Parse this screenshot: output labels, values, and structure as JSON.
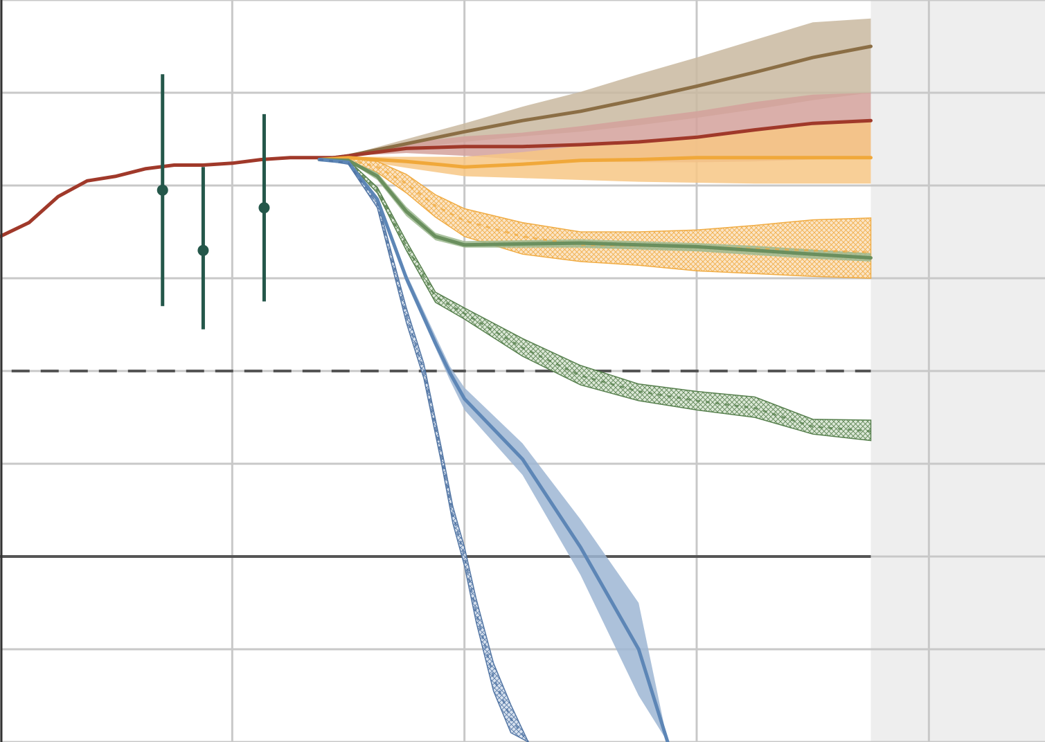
{
  "chart_data": {
    "type": "line",
    "title": "",
    "xlabel": "",
    "ylabel": "",
    "xlim": [
      1950,
      2130
    ],
    "ylim": [
      -2,
      6
    ],
    "x_gridlines": [
      1950,
      1990,
      2030,
      2070,
      2110
    ],
    "y_gridlines": [
      -2,
      -1,
      0,
      1,
      2,
      3,
      4,
      5,
      6
    ],
    "shaded_region": {
      "x_start": 2100,
      "x_end": 2130,
      "color": "#eeeeee"
    },
    "zero_line": {
      "y": 0,
      "color": "#555555"
    },
    "reference_line": {
      "y": 2,
      "style": "dashed",
      "color": "#555555"
    },
    "grid": true,
    "legend": "none",
    "historical": {
      "color": "#a0392a",
      "x": [
        1950,
        1955,
        1960,
        1965,
        1970,
        1975,
        1980,
        1985,
        1990,
        1995,
        2000,
        2005,
        2010
      ],
      "y": [
        3.45,
        3.6,
        3.88,
        4.05,
        4.1,
        4.18,
        4.22,
        4.22,
        4.24,
        4.28,
        4.3,
        4.3,
        4.3
      ]
    },
    "observations": {
      "color": "#24574a",
      "points": [
        {
          "x": 1978,
          "y": 3.95,
          "low": 2.7,
          "high": 5.2
        },
        {
          "x": 1985,
          "y": 3.3,
          "low": 2.45,
          "high": 4.2
        },
        {
          "x": 1995.5,
          "y": 3.76,
          "low": 2.75,
          "high": 4.77
        }
      ]
    },
    "series": [
      {
        "color": "#8b6e45",
        "fill": "#c9b9a0",
        "hatched": false,
        "x": [
          2005,
          2010,
          2020,
          2030,
          2040,
          2050,
          2060,
          2070,
          2080,
          2090,
          2100
        ],
        "y": [
          4.28,
          4.32,
          4.45,
          4.58,
          4.7,
          4.8,
          4.93,
          5.07,
          5.22,
          5.38,
          5.5
        ],
        "low": [
          4.28,
          4.32,
          4.4,
          4.47,
          4.53,
          4.58,
          4.65,
          4.73,
          4.82,
          4.92,
          5.0
        ],
        "high": [
          4.28,
          4.33,
          4.5,
          4.67,
          4.85,
          5.01,
          5.2,
          5.38,
          5.57,
          5.76,
          5.8
        ]
      },
      {
        "color": "#a0392a",
        "fill": "#d4a19b",
        "hatched": false,
        "x": [
          2005,
          2010,
          2020,
          2030,
          2040,
          2050,
          2060,
          2070,
          2080,
          2090,
          2100
        ],
        "y": [
          4.28,
          4.32,
          4.4,
          4.42,
          4.42,
          4.44,
          4.47,
          4.52,
          4.6,
          4.67,
          4.7
        ],
        "low": [
          4.28,
          4.32,
          4.35,
          4.32,
          4.28,
          4.26,
          4.25,
          4.25,
          4.26,
          4.28,
          4.3
        ],
        "high": [
          4.28,
          4.33,
          4.46,
          4.53,
          4.57,
          4.64,
          4.72,
          4.8,
          4.9,
          4.98,
          5.0
        ]
      },
      {
        "color": "#f0a83a",
        "fill": "#f7c785",
        "hatched": false,
        "x": [
          2005,
          2010,
          2020,
          2030,
          2040,
          2050,
          2060,
          2070,
          2080,
          2090,
          2100
        ],
        "y": [
          4.28,
          4.3,
          4.26,
          4.2,
          4.23,
          4.27,
          4.28,
          4.3,
          4.3,
          4.3,
          4.3
        ],
        "low": [
          4.28,
          4.29,
          4.19,
          4.1,
          4.08,
          4.06,
          4.04,
          4.03,
          4.02,
          4.02,
          4.02
        ],
        "high": [
          4.28,
          4.31,
          4.31,
          4.31,
          4.36,
          4.43,
          4.48,
          4.54,
          4.6,
          4.65,
          4.7
        ]
      },
      {
        "color": "#f0a83a",
        "fill": "#f0a83a",
        "hatched": true,
        "x": [
          2005,
          2010,
          2015,
          2020,
          2025,
          2030,
          2040,
          2050,
          2060,
          2070,
          2080,
          2090,
          2100
        ],
        "y": [
          4.28,
          4.28,
          4.2,
          4.02,
          3.78,
          3.62,
          3.45,
          3.36,
          3.35,
          3.34,
          3.32,
          3.3,
          3.28
        ],
        "low": [
          4.28,
          4.27,
          4.14,
          3.92,
          3.66,
          3.45,
          3.26,
          3.18,
          3.14,
          3.08,
          3.05,
          3.02,
          3.0
        ],
        "high": [
          4.28,
          4.29,
          4.26,
          4.12,
          3.9,
          3.75,
          3.6,
          3.5,
          3.5,
          3.52,
          3.57,
          3.63,
          3.65
        ]
      },
      {
        "color": "#6a8f5e",
        "fill": "#9cb88f",
        "hatched": false,
        "x": [
          2005,
          2010,
          2015,
          2020,
          2025,
          2030,
          2040,
          2050,
          2060,
          2070,
          2080,
          2090,
          2100
        ],
        "y": [
          4.28,
          4.27,
          4.1,
          3.72,
          3.45,
          3.36,
          3.37,
          3.38,
          3.36,
          3.34,
          3.3,
          3.26,
          3.22
        ],
        "low": [
          4.28,
          4.26,
          4.06,
          3.67,
          3.41,
          3.33,
          3.33,
          3.33,
          3.31,
          3.29,
          3.25,
          3.21,
          3.18
        ],
        "high": [
          4.28,
          4.28,
          4.14,
          3.77,
          3.49,
          3.4,
          3.41,
          3.42,
          3.4,
          3.38,
          3.35,
          3.31,
          3.27
        ]
      },
      {
        "color": "#4f7a45",
        "fill": "#4f7a45",
        "hatched": true,
        "x": [
          2005,
          2010,
          2015,
          2020,
          2025,
          2030,
          2040,
          2050,
          2060,
          2070,
          2080,
          2090,
          2100
        ],
        "y": [
          4.28,
          4.26,
          3.95,
          3.35,
          2.8,
          2.62,
          2.25,
          1.95,
          1.78,
          1.68,
          1.6,
          1.4,
          1.35
        ],
        "low": [
          4.28,
          4.25,
          3.92,
          3.3,
          2.74,
          2.56,
          2.16,
          1.85,
          1.68,
          1.58,
          1.5,
          1.32,
          1.25
        ],
        "high": [
          4.28,
          4.27,
          3.98,
          3.4,
          2.85,
          2.68,
          2.35,
          2.06,
          1.86,
          1.78,
          1.72,
          1.48,
          1.47
        ]
      },
      {
        "color": "#5d86b6",
        "fill": "#9db6d3",
        "hatched": false,
        "x": [
          2005,
          2010,
          2015,
          2020,
          2025,
          2027.5,
          2030,
          2040,
          2050,
          2060,
          2065
        ],
        "y": [
          4.28,
          4.25,
          3.85,
          3.0,
          2.3,
          1.98,
          1.7,
          1.05,
          0.1,
          -1.0,
          -2.0
        ],
        "low": [
          4.28,
          4.24,
          3.82,
          2.95,
          2.25,
          1.9,
          1.58,
          0.88,
          -0.2,
          -1.5,
          -2.0
        ],
        "high": [
          4.28,
          4.26,
          3.88,
          3.05,
          2.38,
          2.05,
          1.82,
          1.22,
          0.4,
          -0.5,
          -2.0
        ]
      },
      {
        "color": "#4a6fa0",
        "fill": "#4a6fa0",
        "hatched": true,
        "x": [
          2005,
          2010,
          2015,
          2020,
          2023,
          2026,
          2028,
          2030,
          2032,
          2035,
          2038,
          2041
        ],
        "y": [
          4.28,
          4.24,
          3.8,
          2.6,
          2.0,
          1.1,
          0.45,
          0.0,
          -0.6,
          -1.3,
          -1.75,
          -2.0
        ],
        "low": [
          4.28,
          4.23,
          3.76,
          2.52,
          1.92,
          1.02,
          0.36,
          -0.1,
          -0.7,
          -1.45,
          -1.9,
          -2.0
        ],
        "high": [
          4.28,
          4.25,
          3.84,
          2.68,
          2.08,
          1.18,
          0.54,
          0.1,
          -0.45,
          -1.15,
          -1.6,
          -2.0
        ]
      }
    ]
  }
}
